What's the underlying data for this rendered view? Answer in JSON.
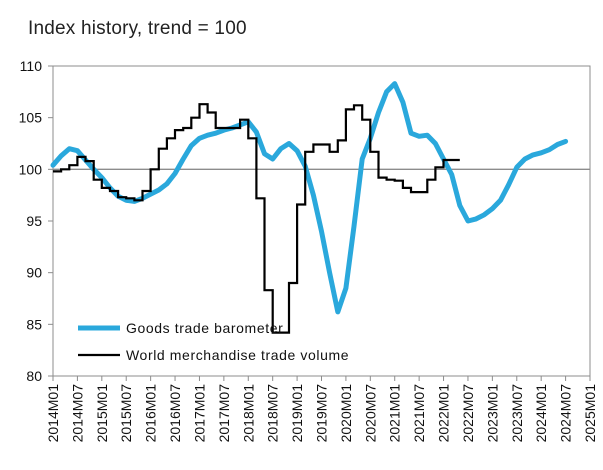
{
  "chart_data": {
    "type": "line",
    "title": "Index history, trend = 100",
    "xlabel": "",
    "ylabel": "",
    "ylim": [
      80,
      110
    ],
    "yticks": [
      80,
      85,
      90,
      95,
      100,
      105,
      110
    ],
    "xticks": [
      "2014M01",
      "2014M07",
      "2015M01",
      "2015M07",
      "2016M01",
      "2016M07",
      "2017M01",
      "2017M07",
      "2018M01",
      "2018M07",
      "2019M01",
      "2019M07",
      "2020M01",
      "2020M07",
      "2021M01",
      "2021M07",
      "2022M01",
      "2022M07",
      "2023M01",
      "2023M07",
      "2024M01",
      "2024M07",
      "2025M01"
    ],
    "reference_line": 100,
    "grid": false,
    "legend_position": "bottom-left",
    "series": [
      {
        "name": "Goods trade barometer",
        "color": "#2aa8dc",
        "points": [
          [
            "2014M01",
            100.4
          ],
          [
            "2014M03",
            101.3
          ],
          [
            "2014M05",
            102.0
          ],
          [
            "2014M07",
            101.8
          ],
          [
            "2014M09",
            100.9
          ],
          [
            "2014M11",
            100.0
          ],
          [
            "2015M01",
            99.2
          ],
          [
            "2015M03",
            98.2
          ],
          [
            "2015M05",
            97.4
          ],
          [
            "2015M07",
            97.0
          ],
          [
            "2015M09",
            96.9
          ],
          [
            "2015M11",
            97.2
          ],
          [
            "2016M01",
            97.6
          ],
          [
            "2016M03",
            98.0
          ],
          [
            "2016M05",
            98.6
          ],
          [
            "2016M07",
            99.6
          ],
          [
            "2016M09",
            101.0
          ],
          [
            "2016M11",
            102.3
          ],
          [
            "2017M01",
            103.0
          ],
          [
            "2017M03",
            103.3
          ],
          [
            "2017M05",
            103.5
          ],
          [
            "2017M07",
            103.8
          ],
          [
            "2017M09",
            104.0
          ],
          [
            "2017M11",
            104.3
          ],
          [
            "2018M01",
            104.6
          ],
          [
            "2018M03",
            103.6
          ],
          [
            "2018M05",
            101.5
          ],
          [
            "2018M07",
            101.0
          ],
          [
            "2018M09",
            102.0
          ],
          [
            "2018M11",
            102.5
          ],
          [
            "2019M01",
            101.8
          ],
          [
            "2019M03",
            100.3
          ],
          [
            "2019M05",
            97.5
          ],
          [
            "2019M07",
            94.0
          ],
          [
            "2019M09",
            90.0
          ],
          [
            "2019M11",
            86.2
          ],
          [
            "2020M01",
            88.5
          ],
          [
            "2020M03",
            94.5
          ],
          [
            "2020M05",
            101.0
          ],
          [
            "2020M07",
            103.0
          ],
          [
            "2020M09",
            105.5
          ],
          [
            "2020M11",
            107.5
          ],
          [
            "2021M01",
            108.3
          ],
          [
            "2021M03",
            106.5
          ],
          [
            "2021M05",
            103.5
          ],
          [
            "2021M07",
            103.2
          ],
          [
            "2021M09",
            103.3
          ],
          [
            "2021M11",
            102.5
          ],
          [
            "2022M01",
            101.0
          ],
          [
            "2022M03",
            99.5
          ],
          [
            "2022M05",
            96.5
          ],
          [
            "2022M07",
            95.0
          ],
          [
            "2022M09",
            95.2
          ],
          [
            "2022M11",
            95.6
          ],
          [
            "2023M01",
            96.2
          ],
          [
            "2023M03",
            97.0
          ],
          [
            "2023M05",
            98.5
          ],
          [
            "2023M07",
            100.2
          ],
          [
            "2023M09",
            101.0
          ],
          [
            "2023M11",
            101.4
          ],
          [
            "2024M01",
            101.6
          ],
          [
            "2024M03",
            101.9
          ],
          [
            "2024M05",
            102.4
          ],
          [
            "2024M07",
            102.7
          ]
        ]
      },
      {
        "name": "World merchandise trade volume",
        "color": "#000000",
        "points": [
          [
            "2014M01",
            99.8
          ],
          [
            "2014M03",
            100.0
          ],
          [
            "2014M05",
            100.4
          ],
          [
            "2014M07",
            101.2
          ],
          [
            "2014M09",
            100.8
          ],
          [
            "2014M11",
            99.0
          ],
          [
            "2015M01",
            98.2
          ],
          [
            "2015M03",
            97.9
          ],
          [
            "2015M05",
            97.3
          ],
          [
            "2015M07",
            97.2
          ],
          [
            "2015M09",
            97.0
          ],
          [
            "2015M11",
            97.9
          ],
          [
            "2016M01",
            100.0
          ],
          [
            "2016M03",
            102.0
          ],
          [
            "2016M05",
            103.0
          ],
          [
            "2016M07",
            103.8
          ],
          [
            "2016M09",
            104.0
          ],
          [
            "2016M11",
            105.0
          ],
          [
            "2017M01",
            106.3
          ],
          [
            "2017M03",
            105.5
          ],
          [
            "2017M05",
            104.0
          ],
          [
            "2017M07",
            104.0
          ],
          [
            "2017M09",
            104.0
          ],
          [
            "2017M11",
            104.8
          ],
          [
            "2018M01",
            103.0
          ],
          [
            "2018M03",
            97.2
          ],
          [
            "2018M05",
            88.3
          ],
          [
            "2018M07",
            84.2
          ],
          [
            "2018M09",
            84.2
          ],
          [
            "2018M11",
            89.0
          ],
          [
            "2019M01",
            96.6
          ],
          [
            "2019M03",
            101.7
          ],
          [
            "2019M05",
            102.4
          ],
          [
            "2019M07",
            102.4
          ],
          [
            "2019M09",
            101.7
          ],
          [
            "2019M11",
            102.8
          ],
          [
            "2020M01",
            105.8
          ],
          [
            "2020M03",
            106.2
          ],
          [
            "2020M05",
            104.8
          ],
          [
            "2020M07",
            101.7
          ],
          [
            "2020M09",
            99.2
          ],
          [
            "2020M11",
            99.0
          ],
          [
            "2021M01",
            98.9
          ],
          [
            "2021M03",
            98.2
          ],
          [
            "2021M05",
            97.8
          ],
          [
            "2021M07",
            97.8
          ],
          [
            "2021M09",
            99.0
          ],
          [
            "2021M11",
            100.2
          ],
          [
            "2022M01",
            100.9
          ],
          [
            "2022M03",
            100.9
          ]
        ]
      }
    ]
  }
}
